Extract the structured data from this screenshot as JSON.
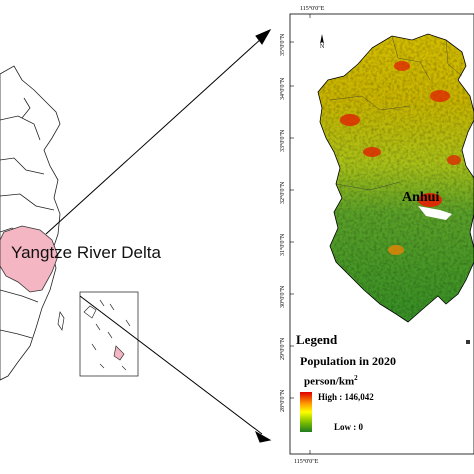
{
  "map": {
    "region_label": "Yangtze River Delta",
    "province_label": "Anhui",
    "longitude_top": "115°0'0\"E",
    "longitude_bottom": "115°0'0\"E",
    "latitudes": [
      "35°0'0\"N",
      "34°0'0\"N",
      "33°0'0\"N",
      "32°0'0\"N",
      "31°0'0\"N",
      "30°0'0\"N",
      "29°0'0\"N",
      "28°0'0\"N"
    ],
    "north_label": "N"
  },
  "legend": {
    "title": "Legend",
    "population_label": "Population in 2020",
    "unit_base": "person/km",
    "unit_exp": "2",
    "high_label": "High : 146,042",
    "low_label": "Low : 0",
    "colors": {
      "high": "#e00000",
      "mid": "#ffff00",
      "low": "#1e7c1e",
      "highlight": "#f4b6c2"
    }
  }
}
